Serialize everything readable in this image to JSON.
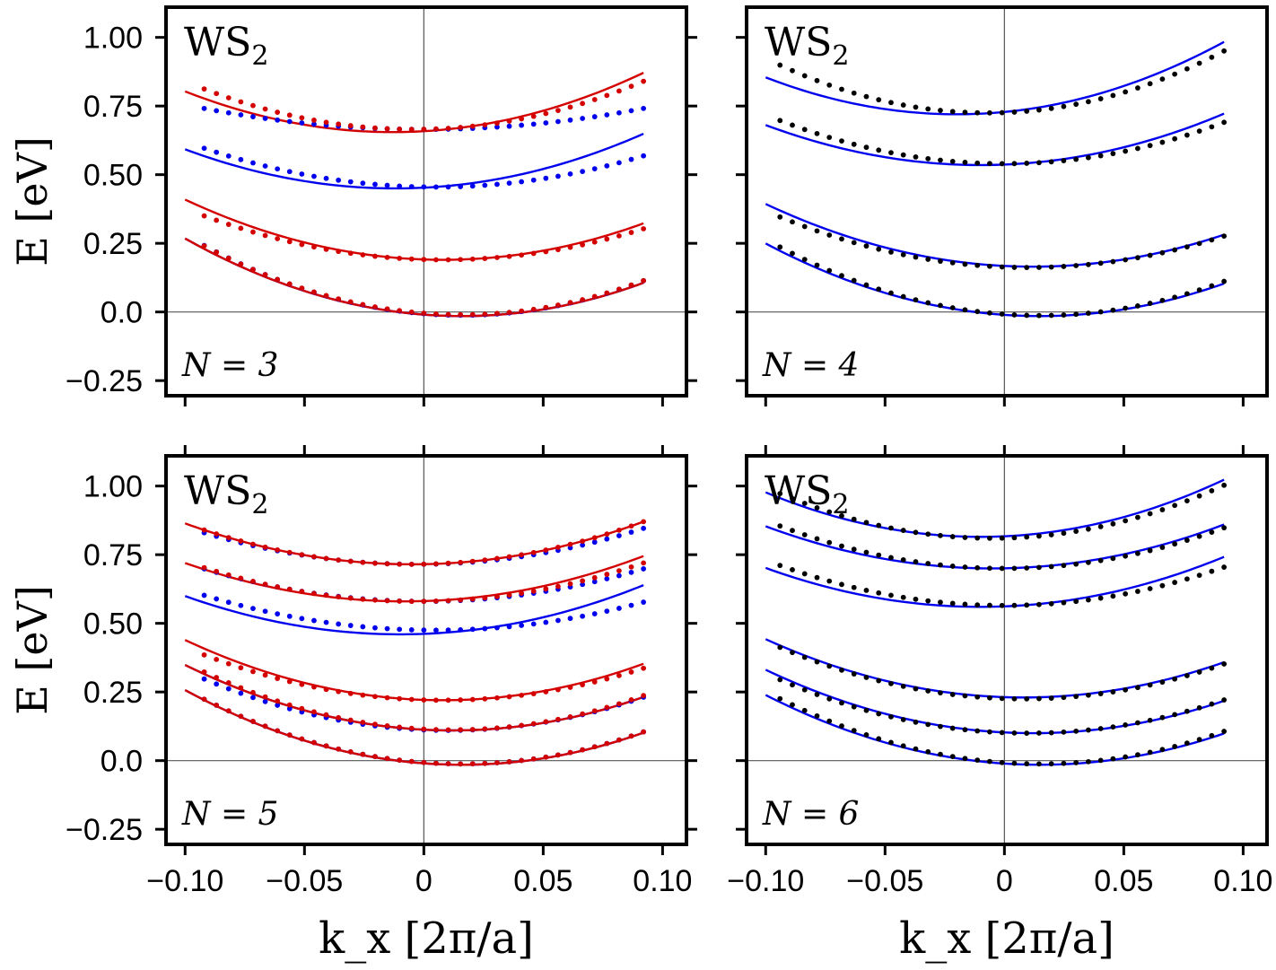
{
  "figure_title": "",
  "colors": {
    "blue": "#0000ee",
    "red": "#d40000",
    "black": "#000000",
    "frame": "#000000",
    "zero_line": "#555555"
  },
  "shared_axes": {
    "xlabel": "k_x [2π/a]",
    "ylabel": "E [eV]",
    "xlim": [
      -0.108,
      0.11
    ],
    "ylim": [
      -0.305,
      1.11
    ],
    "xticks": [
      -0.1,
      -0.05,
      0,
      0.05,
      0.1
    ],
    "xtick_labels": [
      "−0.10",
      "−0.05",
      "0",
      "0.05",
      "0.10"
    ],
    "yticks": [
      -0.25,
      0,
      0.25,
      0.5,
      0.75,
      1.0
    ],
    "ytick_labels": [
      "−0.25",
      "0.0",
      "0.25",
      "0.50",
      "0.75",
      "1.00"
    ]
  },
  "chart_data": [
    {
      "type": "line",
      "panel": "N=3",
      "material": "WS",
      "material_subscript": "2",
      "N_label": "N = 3",
      "N_value": 3,
      "curve_series": [
        {
          "name": "blue-fit-1",
          "color": "blue",
          "k_min": 0.016,
          "e_min": -0.015,
          "curvature": 21.0,
          "x_range": [
            -0.1,
            0.092
          ]
        },
        {
          "name": "blue-fit-2",
          "color": "blue",
          "k_min": -0.012,
          "e_min": 0.45,
          "curvature": 18.4,
          "x_range": [
            -0.1,
            0.092
          ]
        },
        {
          "name": "red-fit-1",
          "color": "red",
          "k_min": 0.016,
          "e_min": -0.015,
          "curvature": 21.0,
          "x_range": [
            -0.1,
            0.092
          ]
        },
        {
          "name": "red-fit-2",
          "color": "red",
          "k_min": 0.008,
          "e_min": 0.19,
          "curvature": 18.8,
          "x_range": [
            -0.1,
            0.092
          ]
        },
        {
          "name": "red-fit-3",
          "color": "red",
          "k_min": -0.013,
          "e_min": 0.655,
          "curvature": 19.6,
          "x_range": [
            -0.1,
            0.092
          ]
        }
      ],
      "dot_series": [
        {
          "name": "blue-dots-1",
          "color": "blue",
          "k_min": 0.016,
          "e_min": -0.012,
          "curvature": 21.8,
          "x_range": [
            -0.092,
            0.092
          ]
        },
        {
          "name": "blue-dots-2",
          "color": "blue",
          "k_min": 0.005,
          "e_min": 0.455,
          "curvature": 15.0,
          "x_range": [
            -0.092,
            0.092
          ]
        },
        {
          "name": "blue-dots-3",
          "color": "blue",
          "k_min": 0.0,
          "e_min": 0.665,
          "curvature": 9.0,
          "x_range": [
            -0.092,
            0.092
          ]
        },
        {
          "name": "red-dots-1",
          "color": "red",
          "k_min": 0.016,
          "e_min": -0.01,
          "curvature": 21.5,
          "x_range": [
            -0.092,
            0.092
          ]
        },
        {
          "name": "red-dots-2",
          "color": "red",
          "k_min": 0.008,
          "e_min": 0.19,
          "curvature": 16.0,
          "x_range": [
            -0.092,
            0.092
          ]
        },
        {
          "name": "red-dots-3",
          "color": "red",
          "k_min": -0.004,
          "e_min": 0.665,
          "curvature": 19.0,
          "x_range": [
            -0.092,
            0.092
          ]
        }
      ]
    },
    {
      "type": "line",
      "panel": "N=4",
      "material": "WS",
      "material_subscript": "2",
      "N_label": "N = 4",
      "N_value": 4,
      "curve_series": [
        {
          "name": "blue-fit-1",
          "color": "blue",
          "k_min": 0.015,
          "e_min": -0.015,
          "curvature": 20.0,
          "x_range": [
            -0.1,
            0.092
          ]
        },
        {
          "name": "blue-fit-2",
          "color": "blue",
          "k_min": 0.012,
          "e_min": 0.165,
          "curvature": 18.2,
          "x_range": [
            -0.1,
            0.092
          ]
        },
        {
          "name": "blue-fit-3",
          "color": "blue",
          "k_min": -0.01,
          "e_min": 0.535,
          "curvature": 18.0,
          "x_range": [
            -0.1,
            0.092
          ]
        },
        {
          "name": "blue-fit-4",
          "color": "blue",
          "k_min": -0.02,
          "e_min": 0.72,
          "curvature": 21.0,
          "x_range": [
            -0.1,
            0.092
          ]
        }
      ],
      "dot_series": [
        {
          "name": "black-dots-1",
          "color": "black",
          "k_min": 0.015,
          "e_min": -0.013,
          "curvature": 21.0,
          "x_range": [
            -0.094,
            0.092
          ]
        },
        {
          "name": "black-dots-2",
          "color": "black",
          "k_min": 0.01,
          "e_min": 0.162,
          "curvature": 17.0,
          "x_range": [
            -0.094,
            0.092
          ]
        },
        {
          "name": "black-dots-3",
          "color": "black",
          "k_min": 0.0,
          "e_min": 0.54,
          "curvature": 17.8,
          "x_range": [
            -0.094,
            0.092
          ]
        },
        {
          "name": "black-dots-4",
          "color": "black",
          "k_min": -0.007,
          "e_min": 0.725,
          "curvature": 23.0,
          "x_range": [
            -0.094,
            0.092
          ]
        }
      ]
    },
    {
      "type": "line",
      "panel": "N=5",
      "material": "WS",
      "material_subscript": "2",
      "N_label": "N = 5",
      "N_value": 5,
      "curve_series": [
        {
          "name": "blue-fit-1",
          "color": "blue",
          "k_min": 0.016,
          "e_min": -0.015,
          "curvature": 20.2,
          "x_range": [
            -0.1,
            0.092
          ]
        },
        {
          "name": "blue-fit-2",
          "color": "blue",
          "k_min": 0.012,
          "e_min": 0.11,
          "curvature": 19.0,
          "x_range": [
            -0.1,
            0.092
          ]
        },
        {
          "name": "blue-fit-3",
          "color": "blue",
          "k_min": -0.01,
          "e_min": 0.46,
          "curvature": 17.2,
          "x_range": [
            -0.1,
            0.092
          ]
        },
        {
          "name": "red-fit-1",
          "color": "red",
          "k_min": 0.016,
          "e_min": -0.015,
          "curvature": 20.2,
          "x_range": [
            -0.1,
            0.092
          ]
        },
        {
          "name": "red-fit-2",
          "color": "red",
          "k_min": 0.012,
          "e_min": 0.11,
          "curvature": 19.0,
          "x_range": [
            -0.1,
            0.092
          ]
        },
        {
          "name": "red-fit-3",
          "color": "red",
          "k_min": 0.008,
          "e_min": 0.22,
          "curvature": 18.8,
          "x_range": [
            -0.1,
            0.092
          ]
        },
        {
          "name": "red-fit-4",
          "color": "red",
          "k_min": -0.008,
          "e_min": 0.58,
          "curvature": 16.5,
          "x_range": [
            -0.1,
            0.092
          ]
        },
        {
          "name": "red-fit-5",
          "color": "red",
          "k_min": -0.005,
          "e_min": 0.715,
          "curvature": 16.5,
          "x_range": [
            -0.1,
            0.092
          ]
        }
      ],
      "dot_series": [
        {
          "name": "blue-dots-1",
          "color": "blue",
          "k_min": 0.016,
          "e_min": -0.012,
          "curvature": 20.2,
          "x_range": [
            -0.092,
            0.092
          ]
        },
        {
          "name": "blue-dots-2",
          "color": "blue",
          "k_min": 0.01,
          "e_min": 0.11,
          "curvature": 18.0,
          "x_range": [
            -0.092,
            0.092
          ]
        },
        {
          "name": "blue-dots-3",
          "color": "blue",
          "k_min": 0.005,
          "e_min": 0.475,
          "curvature": 13.5,
          "x_range": [
            -0.092,
            0.092
          ]
        },
        {
          "name": "blue-dots-4",
          "color": "blue",
          "k_min": 0.0,
          "e_min": 0.58,
          "curvature": 14.0,
          "x_range": [
            -0.092,
            0.092
          ]
        },
        {
          "name": "blue-dots-5",
          "color": "blue",
          "k_min": -0.003,
          "e_min": 0.715,
          "curvature": 14.5,
          "x_range": [
            -0.092,
            0.092
          ]
        },
        {
          "name": "red-dots-1",
          "color": "red",
          "k_min": 0.016,
          "e_min": -0.012,
          "curvature": 20.2,
          "x_range": [
            -0.092,
            0.092
          ]
        },
        {
          "name": "red-dots-2",
          "color": "red",
          "k_min": 0.012,
          "e_min": 0.112,
          "curvature": 19.5,
          "x_range": [
            -0.092,
            0.092
          ]
        },
        {
          "name": "red-dots-3",
          "color": "red",
          "k_min": 0.008,
          "e_min": 0.22,
          "curvature": 16.5,
          "x_range": [
            -0.092,
            0.092
          ]
        },
        {
          "name": "red-dots-4",
          "color": "red",
          "k_min": -0.003,
          "e_min": 0.58,
          "curvature": 15.5,
          "x_range": [
            -0.092,
            0.092
          ]
        },
        {
          "name": "red-dots-5",
          "color": "red",
          "k_min": -0.005,
          "e_min": 0.715,
          "curvature": 16.5,
          "x_range": [
            -0.092,
            0.092
          ]
        }
      ]
    },
    {
      "type": "line",
      "panel": "N=6",
      "material": "WS",
      "material_subscript": "2",
      "N_label": "N = 6",
      "N_value": 6,
      "curve_series": [
        {
          "name": "blue-fit-1",
          "color": "blue",
          "k_min": 0.015,
          "e_min": -0.015,
          "curvature": 19.2,
          "x_range": [
            -0.1,
            0.092
          ]
        },
        {
          "name": "blue-fit-2",
          "color": "blue",
          "k_min": 0.012,
          "e_min": 0.1,
          "curvature": 18.4,
          "x_range": [
            -0.1,
            0.092
          ]
        },
        {
          "name": "blue-fit-3",
          "color": "blue",
          "k_min": 0.008,
          "e_min": 0.23,
          "curvature": 18.2,
          "x_range": [
            -0.1,
            0.092
          ]
        },
        {
          "name": "blue-fit-4",
          "color": "blue",
          "k_min": -0.01,
          "e_min": 0.56,
          "curvature": 17.5,
          "x_range": [
            -0.1,
            0.092
          ]
        },
        {
          "name": "blue-fit-5",
          "color": "blue",
          "k_min": -0.005,
          "e_min": 0.7,
          "curvature": 17.0,
          "x_range": [
            -0.1,
            0.092
          ]
        },
        {
          "name": "blue-fit-6",
          "color": "blue",
          "k_min": -0.01,
          "e_min": 0.815,
          "curvature": 20.0,
          "x_range": [
            -0.1,
            0.092
          ]
        }
      ],
      "dot_series": [
        {
          "name": "black-dots-1",
          "color": "black",
          "k_min": 0.015,
          "e_min": -0.012,
          "curvature": 20.0,
          "x_range": [
            -0.094,
            0.092
          ]
        },
        {
          "name": "black-dots-2",
          "color": "black",
          "k_min": 0.01,
          "e_min": 0.1,
          "curvature": 18.0,
          "x_range": [
            -0.094,
            0.092
          ]
        },
        {
          "name": "black-dots-3",
          "color": "black",
          "k_min": 0.008,
          "e_min": 0.225,
          "curvature": 18.0,
          "x_range": [
            -0.094,
            0.092
          ]
        },
        {
          "name": "black-dots-4",
          "color": "black",
          "k_min": 0.0,
          "e_min": 0.565,
          "curvature": 16.5,
          "x_range": [
            -0.094,
            0.092
          ]
        },
        {
          "name": "black-dots-5",
          "color": "black",
          "k_min": 0.0,
          "e_min": 0.7,
          "curvature": 17.5,
          "x_range": [
            -0.094,
            0.092
          ]
        },
        {
          "name": "black-dots-6",
          "color": "black",
          "k_min": -0.005,
          "e_min": 0.81,
          "curvature": 20.5,
          "x_range": [
            -0.094,
            0.092
          ]
        }
      ]
    }
  ]
}
